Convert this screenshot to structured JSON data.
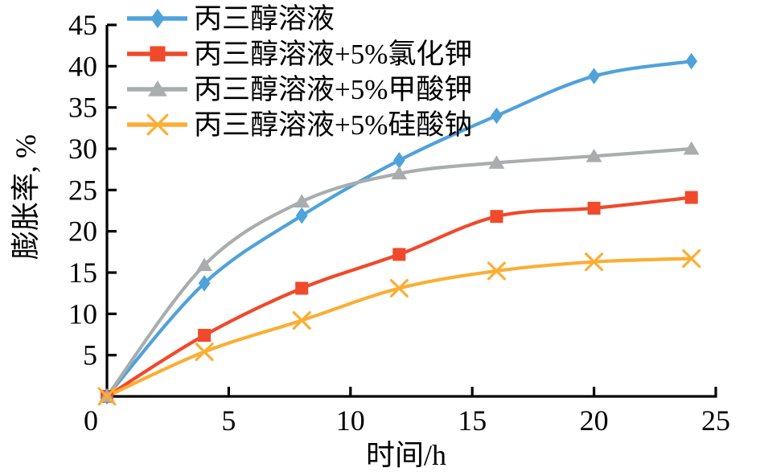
{
  "figure": {
    "background": "#ffffff",
    "axis_color": "#000000",
    "text_color": "#000000"
  },
  "chart_data": {
    "type": "line",
    "title": "",
    "xlabel": "时间/h",
    "ylabel": "膨胀率, %",
    "xlim": [
      0,
      25
    ],
    "ylim": [
      0,
      45
    ],
    "x_ticks": [
      5,
      10,
      15,
      20,
      25
    ],
    "y_ticks": [
      5,
      10,
      15,
      20,
      25,
      30,
      35,
      40,
      45
    ],
    "origin_label": "0",
    "grid": false,
    "legend_position": "top-left-inside",
    "x": [
      0,
      4,
      8,
      12,
      16,
      20,
      24
    ],
    "series": [
      {
        "name": "丙三醇溶液",
        "color": "#4FA2DA",
        "marker": "diamond",
        "values": [
          0,
          13.7,
          21.9,
          28.6,
          34.0,
          38.8,
          40.6
        ]
      },
      {
        "name": "丙三醇溶液+5%氯化钾",
        "color": "#F0492B",
        "marker": "square",
        "values": [
          0,
          7.4,
          13.1,
          17.2,
          21.8,
          22.8,
          24.1
        ]
      },
      {
        "name": "丙三醇溶液+5%甲酸钾",
        "color": "#A9ADAD",
        "marker": "triangle",
        "values": [
          0,
          15.9,
          23.6,
          27.0,
          28.3,
          29.1,
          30.0
        ]
      },
      {
        "name": "丙三醇溶液+5%硅酸钠",
        "color": "#FBAE34",
        "marker": "x",
        "values": [
          0,
          5.4,
          9.2,
          13.1,
          15.2,
          16.3,
          16.7
        ]
      }
    ]
  }
}
